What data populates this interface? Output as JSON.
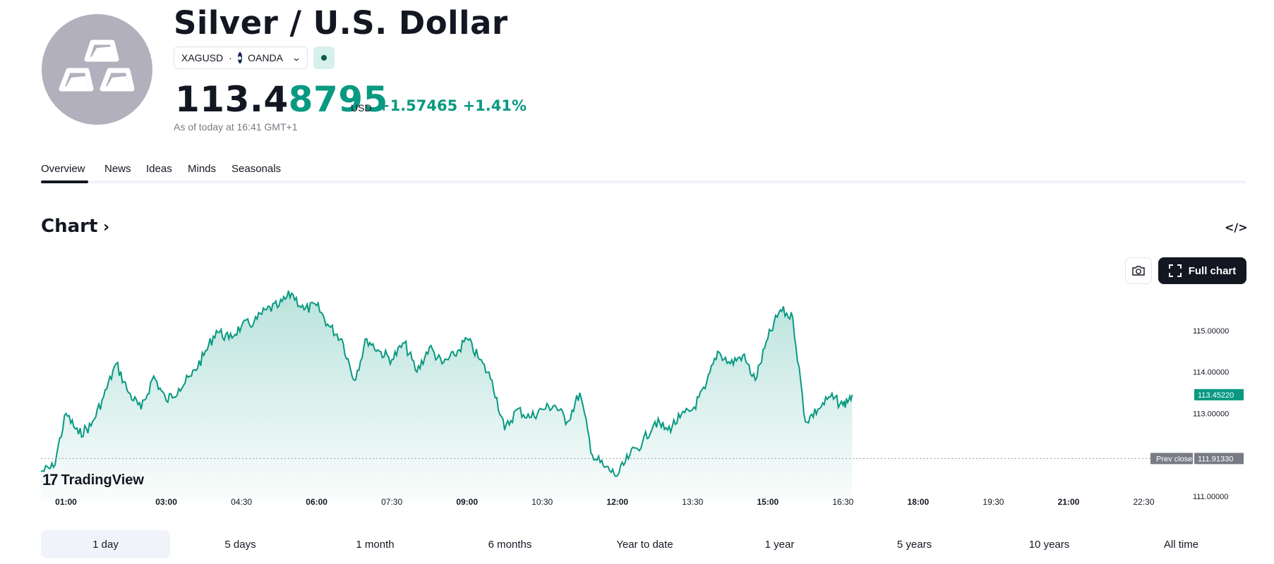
{
  "header": {
    "title": "Silver / U.S. Dollar",
    "symbol": "XAGUSD",
    "separator": "·",
    "exchange": "OANDA",
    "price_main": "113.4",
    "price_highlight": "8795",
    "price_unit": "USD",
    "change": "+1.57465",
    "change_pct": "+1.41%",
    "as_of": "As of today at 16:41 GMT+1"
  },
  "tabs": [
    {
      "label": "Overview",
      "active": true
    },
    {
      "label": "News"
    },
    {
      "label": "Ideas"
    },
    {
      "label": "Minds"
    },
    {
      "label": "Seasonals"
    }
  ],
  "chart_section": {
    "heading": "Chart",
    "embed_icon": "</>",
    "full_chart_label": "Full chart",
    "brand": "TradingView",
    "brand_mark": "17"
  },
  "colors": {
    "accent": "#089981",
    "text": "#131722",
    "muted": "#787b86"
  },
  "chart_data": {
    "type": "area",
    "title": "",
    "xlabel": "",
    "ylabel": "",
    "x_ticks": [
      "01:00",
      "03:00",
      "04:30",
      "06:00",
      "07:30",
      "09:00",
      "10:30",
      "12:00",
      "13:30",
      "15:00",
      "16:30",
      "18:00",
      "19:30",
      "21:00",
      "22:30"
    ],
    "y_ticks": [
      "115.00000",
      "114.00000",
      "113.00000",
      "111.00000"
    ],
    "ylim": [
      110.9,
      116.0
    ],
    "prev_close": {
      "label": "Prev close",
      "value": "111.91330"
    },
    "last_price": "113.45220",
    "series": [
      {
        "x": [
          "00:30",
          "00:45",
          "01:00",
          "01:15",
          "01:30",
          "01:45",
          "02:00",
          "02:15",
          "02:30",
          "02:45",
          "03:00",
          "03:15",
          "03:30",
          "03:45",
          "04:00",
          "04:15",
          "04:30",
          "04:45",
          "05:00",
          "05:15",
          "05:30",
          "05:45",
          "06:00",
          "06:15",
          "06:30",
          "06:45",
          "07:00",
          "07:15",
          "07:30",
          "07:45",
          "08:00",
          "08:15",
          "08:30",
          "08:45",
          "09:00",
          "09:15",
          "09:30",
          "09:45",
          "10:00",
          "10:15",
          "10:30",
          "10:45",
          "11:00",
          "11:15",
          "11:30",
          "11:45",
          "12:00",
          "12:15",
          "12:30",
          "12:45",
          "13:00",
          "13:15",
          "13:30",
          "13:45",
          "14:00",
          "14:15",
          "14:30",
          "14:45",
          "15:00",
          "15:15",
          "15:30",
          "15:45",
          "16:00",
          "16:15",
          "16:30",
          "16:41"
        ],
        "values": [
          111.6,
          111.7,
          113.0,
          112.5,
          112.7,
          113.4,
          114.2,
          113.5,
          113.1,
          113.9,
          113.3,
          113.6,
          113.9,
          114.4,
          115.0,
          114.8,
          115.1,
          115.2,
          115.5,
          115.6,
          115.9,
          115.5,
          115.6,
          115.1,
          114.8,
          113.8,
          114.8,
          114.5,
          114.3,
          114.7,
          114.0,
          114.6,
          114.2,
          114.4,
          114.8,
          114.3,
          113.8,
          112.6,
          113.1,
          112.9,
          113.1,
          113.2,
          112.8,
          113.5,
          112.0,
          111.7,
          111.5,
          112.0,
          112.3,
          112.8,
          112.6,
          112.9,
          113.1,
          113.6,
          114.5,
          114.2,
          114.4,
          113.8,
          114.8,
          115.5,
          115.3,
          112.8,
          113.1,
          113.4,
          113.2,
          113.45
        ]
      }
    ]
  },
  "ranges": [
    {
      "label": "1 day",
      "active": true
    },
    {
      "label": "5 days"
    },
    {
      "label": "1 month"
    },
    {
      "label": "6 months"
    },
    {
      "label": "Year to date"
    },
    {
      "label": "1 year"
    },
    {
      "label": "5 years"
    },
    {
      "label": "10 years"
    },
    {
      "label": "All time"
    }
  ]
}
